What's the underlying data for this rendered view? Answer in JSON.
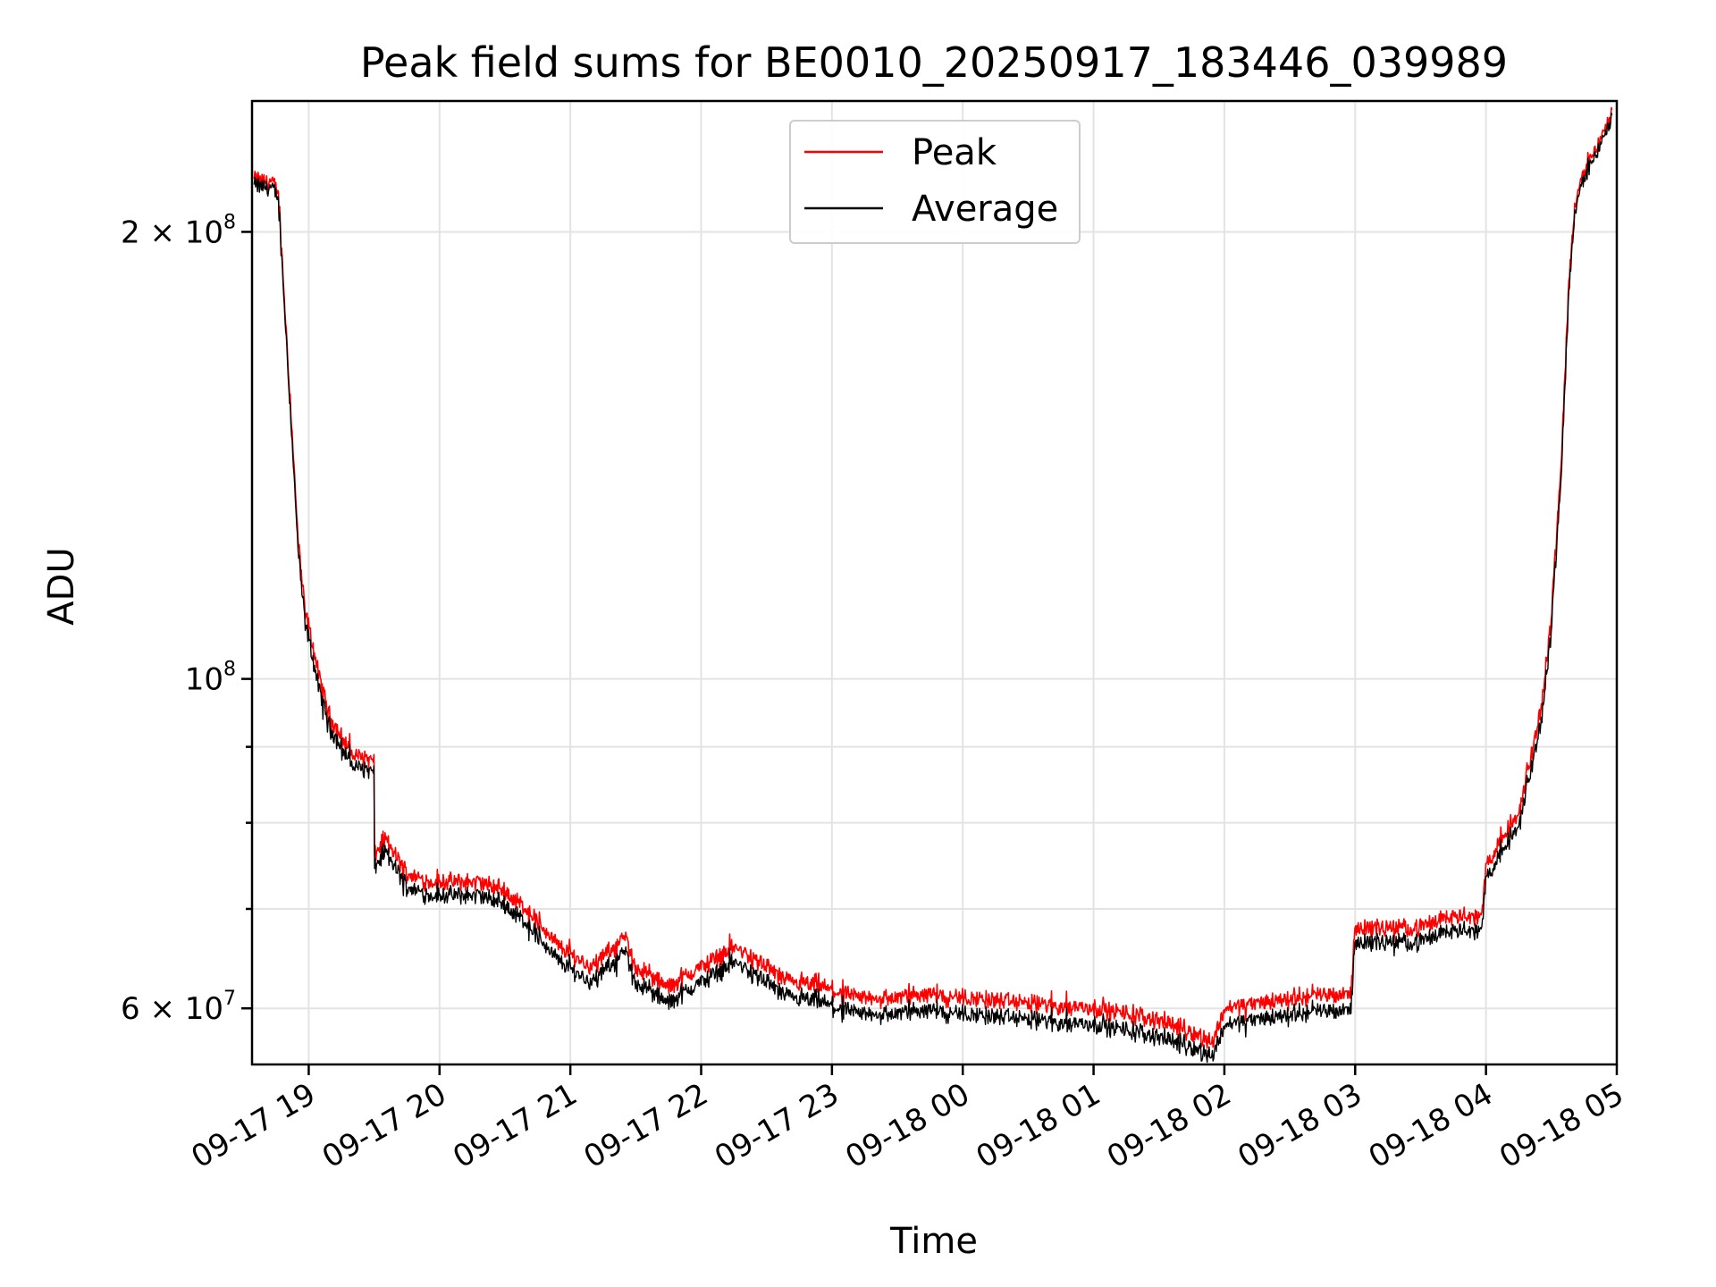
{
  "chart_data": {
    "type": "line",
    "title": "Peak field sums for BE0010_20250917_183446_039989",
    "xlabel": "Time",
    "ylabel": "ADU",
    "x_ticks": [
      "09-17 19",
      "09-17 20",
      "09-17 21",
      "09-17 22",
      "09-17 23",
      "09-18 00",
      "09-18 01",
      "09-18 02",
      "09-18 03",
      "09-18 04",
      "09-18 05"
    ],
    "xlim": [
      "2025-09-17 18:34",
      "2025-09-18 05:00"
    ],
    "y_scale": "log",
    "ylim": [
      55000000,
      245000000
    ],
    "y_ticks_major": [
      {
        "value": 60000000,
        "base": "6 × 10",
        "exp": "7"
      },
      {
        "value": 100000000,
        "base": "10",
        "exp": "8"
      },
      {
        "value": 200000000,
        "base": "2 × 10",
        "exp": "8"
      }
    ],
    "y_ticks_minor": [
      70000000,
      80000000,
      90000000
    ],
    "grid": true,
    "legend_position": "top-center",
    "series": [
      {
        "name": "Peak",
        "color": "#ff0000",
        "x": [
          "2025-09-17 18:35",
          "2025-09-17 18:43",
          "2025-09-17 18:46",
          "2025-09-17 18:52",
          "2025-09-17 18:55",
          "2025-09-17 18:58",
          "2025-09-17 19:05",
          "2025-09-17 19:10",
          "2025-09-17 19:20",
          "2025-09-17 19:30",
          "2025-09-17 19:30",
          "2025-09-17 19:35",
          "2025-09-17 19:45",
          "2025-09-17 19:55",
          "2025-09-17 20:05",
          "2025-09-17 20:18",
          "2025-09-17 20:30",
          "2025-09-17 20:40",
          "2025-09-17 20:55",
          "2025-09-17 21:10",
          "2025-09-17 21:25",
          "2025-09-17 21:30",
          "2025-09-17 21:45",
          "2025-09-17 22:00",
          "2025-09-17 22:15",
          "2025-09-17 22:30",
          "2025-09-17 22:40",
          "2025-09-17 22:55",
          "2025-09-17 23:10",
          "2025-09-17 23:30",
          "2025-09-17 23:45",
          "2025-09-18 00:00",
          "2025-09-18 00:30",
          "2025-09-18 01:00",
          "2025-09-18 01:30",
          "2025-09-18 01:55",
          "2025-09-18 02:00",
          "2025-09-18 02:30",
          "2025-09-18 02:58",
          "2025-09-18 03:00",
          "2025-09-18 03:30",
          "2025-09-18 03:45",
          "2025-09-18 03:58",
          "2025-09-18 04:00",
          "2025-09-18 04:15",
          "2025-09-18 04:25",
          "2025-09-18 04:30",
          "2025-09-18 04:35",
          "2025-09-18 04:38",
          "2025-09-18 04:41",
          "2025-09-18 04:47",
          "2025-09-18 04:58"
        ],
        "values": [
          217000000,
          216000000,
          213000000,
          150000000,
          125000000,
          112000000,
          100000000,
          94000000,
          89000000,
          88000000,
          76000000,
          78000000,
          74000000,
          73000000,
          73000000,
          73000000,
          72000000,
          70000000,
          66000000,
          64000000,
          67000000,
          64000000,
          62000000,
          64000000,
          66000000,
          64000000,
          62500000,
          62000000,
          61000000,
          61000000,
          61500000,
          61000000,
          60500000,
          60000000,
          59000000,
          57000000,
          60000000,
          61000000,
          61500000,
          68000000,
          68000000,
          69500000,
          69000000,
          75000000,
          81000000,
          95000000,
          110000000,
          145000000,
          185000000,
          210000000,
          223000000,
          240000000
        ]
      },
      {
        "name": "Average",
        "color": "#000000",
        "x": [
          "2025-09-17 18:35",
          "2025-09-17 18:43",
          "2025-09-17 18:46",
          "2025-09-17 18:52",
          "2025-09-17 18:55",
          "2025-09-17 18:58",
          "2025-09-17 19:05",
          "2025-09-17 19:10",
          "2025-09-17 19:20",
          "2025-09-17 19:30",
          "2025-09-17 19:30",
          "2025-09-17 19:35",
          "2025-09-17 19:45",
          "2025-09-17 19:55",
          "2025-09-17 20:05",
          "2025-09-17 20:18",
          "2025-09-17 20:30",
          "2025-09-17 20:40",
          "2025-09-17 20:55",
          "2025-09-17 21:10",
          "2025-09-17 21:25",
          "2025-09-17 21:30",
          "2025-09-17 21:45",
          "2025-09-17 22:00",
          "2025-09-17 22:15",
          "2025-09-17 22:30",
          "2025-09-17 22:40",
          "2025-09-17 22:55",
          "2025-09-17 23:10",
          "2025-09-17 23:30",
          "2025-09-17 23:45",
          "2025-09-18 00:00",
          "2025-09-18 00:30",
          "2025-09-18 01:00",
          "2025-09-18 01:30",
          "2025-09-18 01:55",
          "2025-09-18 02:00",
          "2025-09-18 02:30",
          "2025-09-18 02:58",
          "2025-09-18 03:00",
          "2025-09-18 03:30",
          "2025-09-18 03:45",
          "2025-09-18 03:58",
          "2025-09-18 04:00",
          "2025-09-18 04:15",
          "2025-09-18 04:25",
          "2025-09-18 04:30",
          "2025-09-18 04:35",
          "2025-09-18 04:38",
          "2025-09-18 04:41",
          "2025-09-18 04:47",
          "2025-09-18 04:58"
        ],
        "values": [
          215000000,
          214000000,
          211000000,
          148000000,
          123000000,
          110000000,
          98000000,
          92500000,
          87500000,
          86500000,
          74500000,
          76500000,
          72500000,
          71500000,
          71500000,
          71500000,
          70500000,
          68500000,
          64500000,
          62500000,
          65500000,
          62500000,
          60500000,
          62500000,
          64500000,
          62500000,
          61000000,
          60500000,
          59500000,
          59500000,
          60000000,
          59500000,
          59000000,
          58500000,
          57500000,
          55800000,
          58500000,
          59500000,
          60000000,
          66500000,
          66500000,
          68000000,
          67500000,
          73500000,
          79500000,
          93000000,
          108000000,
          142000000,
          182000000,
          208000000,
          221000000,
          238000000
        ]
      }
    ]
  }
}
